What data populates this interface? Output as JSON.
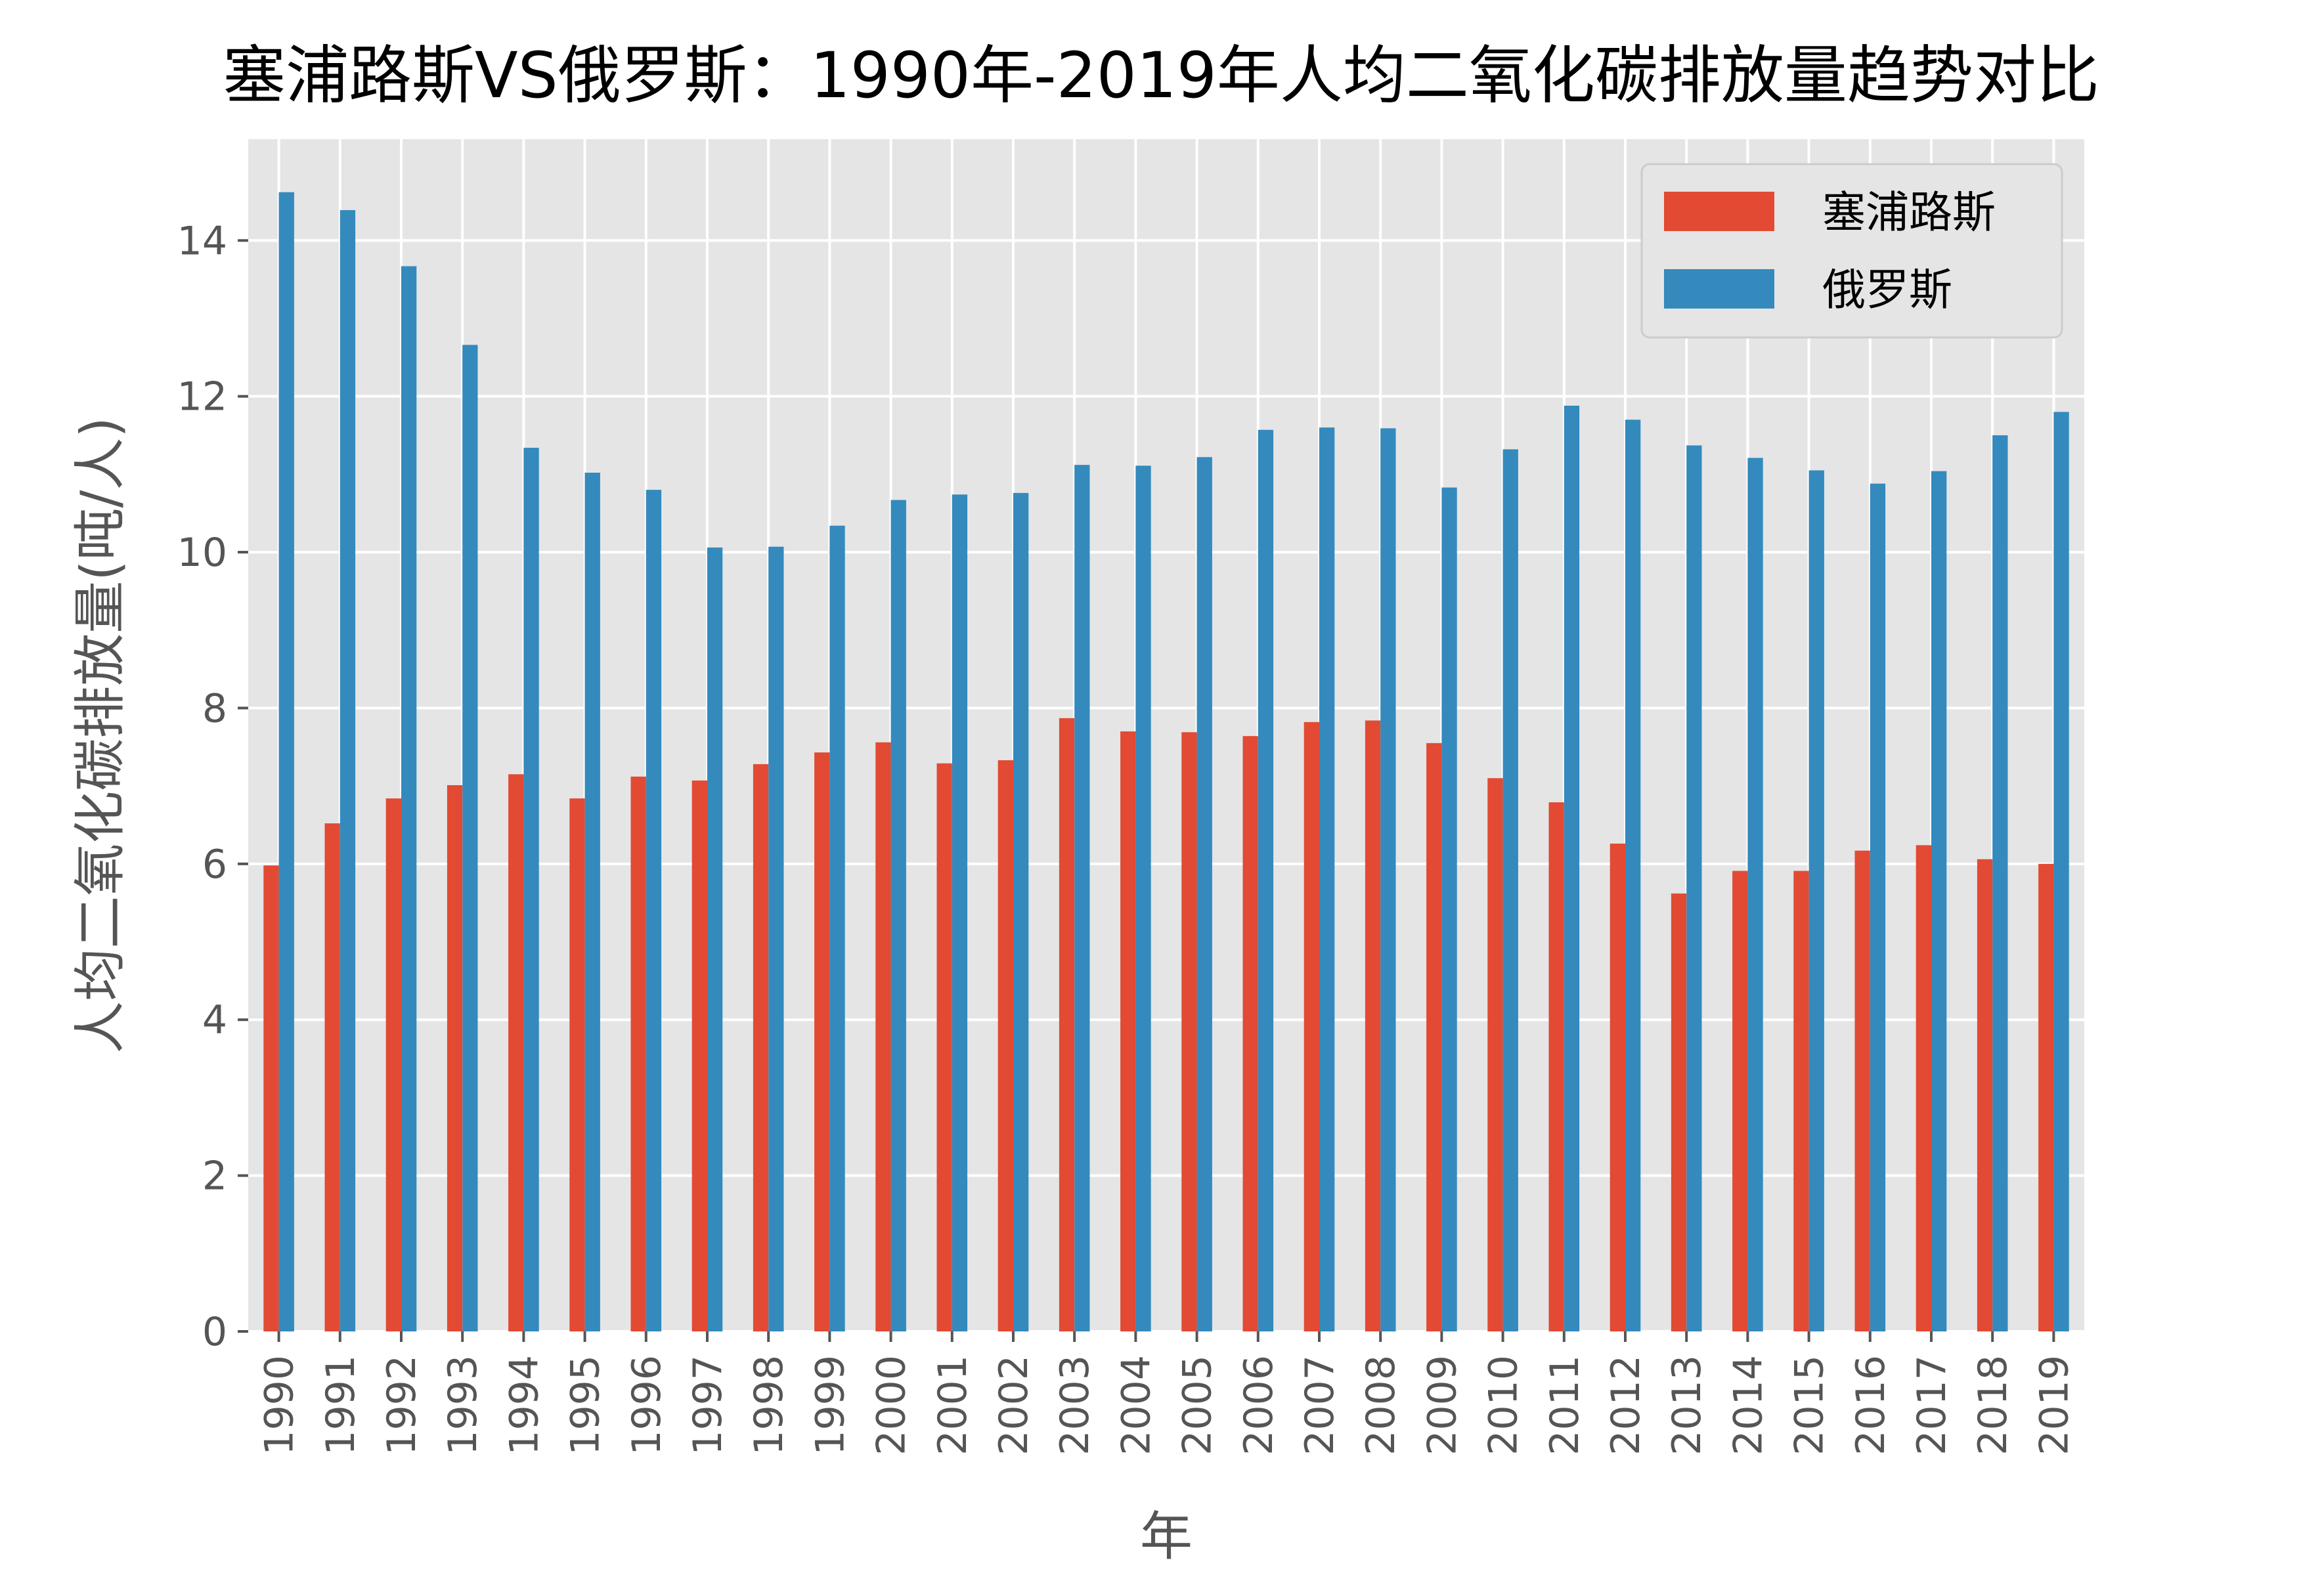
{
  "chart_data": {
    "type": "bar",
    "title": "塞浦路斯VS俄罗斯：1990年-2019年人均二氧化碳排放量趋势对比",
    "xlabel": "年",
    "ylabel": "人均二氧化碳排放量(吨/人)",
    "ylim": [
      0,
      15.3
    ],
    "yticks": [
      0,
      2,
      4,
      6,
      8,
      10,
      12,
      14
    ],
    "grid": true,
    "legend_position": "top-right",
    "categories": [
      "1990",
      "1991",
      "1992",
      "1993",
      "1994",
      "1995",
      "1996",
      "1997",
      "1998",
      "1999",
      "2000",
      "2001",
      "2002",
      "2003",
      "2004",
      "2005",
      "2006",
      "2007",
      "2008",
      "2009",
      "2010",
      "2011",
      "2012",
      "2013",
      "2014",
      "2015",
      "2016",
      "2017",
      "2018",
      "2019"
    ],
    "series": [
      {
        "name": "塞浦路斯",
        "color": "#E24A33",
        "values": [
          5.98,
          6.52,
          6.84,
          7.01,
          7.15,
          6.84,
          7.12,
          7.07,
          7.28,
          7.43,
          7.56,
          7.29,
          7.33,
          7.87,
          7.7,
          7.69,
          7.64,
          7.82,
          7.84,
          7.55,
          7.1,
          6.79,
          6.26,
          5.62,
          5.91,
          5.91,
          6.17,
          6.24,
          6.06,
          6.0
        ]
      },
      {
        "name": "俄罗斯",
        "color": "#348ABD",
        "values": [
          14.62,
          14.39,
          13.67,
          12.66,
          11.34,
          11.02,
          10.8,
          10.06,
          10.07,
          10.34,
          10.67,
          10.74,
          10.76,
          11.12,
          11.11,
          11.22,
          11.57,
          11.6,
          11.59,
          10.83,
          11.32,
          11.88,
          11.7,
          11.37,
          11.21,
          11.05,
          10.88,
          11.04,
          11.5,
          11.8
        ]
      }
    ]
  }
}
